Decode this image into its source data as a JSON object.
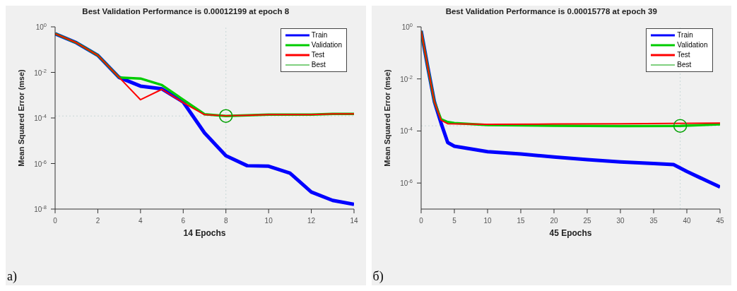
{
  "chart_data": [
    {
      "type": "line",
      "title": "Best Validation Performance is 0.00012199 at epoch 8",
      "xlabel": "14 Epochs",
      "ylabel": "Mean Squared Error  (mse)",
      "annotations": [
        "а)"
      ],
      "log": "y",
      "grid": false,
      "legend": "top right",
      "line_style": "solid",
      "xlim": [
        0,
        14
      ],
      "xticks": [
        0,
        2,
        4,
        6,
        8,
        10,
        12,
        14
      ],
      "ylim": [
        1e-08,
        1
      ],
      "yticks": [
        {
          "value": 1,
          "label": "10$^{0}$"
        },
        {
          "value": 0.01,
          "label": "10$^{-2}$"
        },
        {
          "value": 0.0001,
          "label": "10$^{-4}$"
        },
        {
          "value": 1e-06,
          "label": "10$^{-6}$"
        },
        {
          "value": 1e-08,
          "label": "10$^{-8}$"
        }
      ],
      "series": [
        {
          "name": "Train",
          "color": "#0000ff",
          "x": [
            0,
            1,
            2,
            3,
            4,
            5,
            6,
            7,
            8,
            9,
            10,
            11,
            12,
            13,
            14
          ],
          "values": [
            0.5,
            0.2,
            0.056,
            0.006,
            0.0025,
            0.0019,
            0.0005,
            2.2e-05,
            2.2e-06,
            8e-07,
            7.6e-07,
            3.8e-07,
            5.6e-08,
            2.4e-08,
            1.6e-08
          ]
        },
        {
          "name": "Validation",
          "color": "#00cc00",
          "x": [
            0,
            1,
            2,
            3,
            4,
            5,
            6,
            7,
            8,
            9,
            10,
            11,
            12,
            13,
            14
          ],
          "values": [
            0.5,
            0.2,
            0.056,
            0.006,
            0.0054,
            0.0028,
            0.00063,
            0.000145,
            0.00012199,
            0.00013,
            0.00014,
            0.00014,
            0.00014,
            0.00015,
            0.00015
          ]
        },
        {
          "name": "Test",
          "color": "#ff0000",
          "x": [
            0,
            1,
            2,
            3,
            4,
            5,
            6,
            7,
            8,
            9,
            10,
            11,
            12,
            13,
            14
          ],
          "values": [
            0.5,
            0.2,
            0.056,
            0.006,
            0.00063,
            0.0018,
            0.00047,
            0.00014,
            0.000125,
            0.00013,
            0.00014,
            0.00014,
            0.00014,
            0.00015,
            0.00015
          ]
        },
        {
          "name": "Best",
          "type": "scatter",
          "marker": "circle",
          "color": "#00a000",
          "x": [
            8
          ],
          "values": [
            0.00012199
          ]
        }
      ],
      "ref_lines": [
        {
          "axis": "x",
          "value": 8,
          "color": "#c8d8d8",
          "line_style": "dotted"
        },
        {
          "axis": "y",
          "value": 0.00012199,
          "color": "#c8d8d8",
          "line_style": "dotted"
        }
      ]
    },
    {
      "type": "line",
      "title": "Best Validation Performance is 0.00015778 at epoch 39",
      "xlabel": "45 Epochs",
      "ylabel": "Mean Squared Error  (mse)",
      "annotations": [
        "б)"
      ],
      "log": "y",
      "grid": false,
      "legend": "top right",
      "line_style": "solid",
      "xlim": [
        0,
        45
      ],
      "xticks": [
        0,
        5,
        10,
        15,
        20,
        25,
        30,
        35,
        40,
        45
      ],
      "ylim": [
        1e-07,
        1
      ],
      "yticks": [
        {
          "value": 1,
          "label": "10$^{0}$"
        },
        {
          "value": 0.01,
          "label": "10$^{-2}$"
        },
        {
          "value": 0.0001,
          "label": "10$^{-4}$"
        },
        {
          "value": 1e-06,
          "label": "10$^{-6}$"
        }
      ],
      "series": [
        {
          "name": "Train",
          "color": "#0000ff",
          "x": [
            0,
            1,
            2,
            3,
            4,
            5,
            10,
            15,
            20,
            25,
            30,
            35,
            38,
            40,
            42,
            45
          ],
          "values": [
            0.7,
            0.028,
            0.0013,
            0.0002,
            3.6e-05,
            2.6e-05,
            1.6e-05,
            1.3e-05,
            1e-05,
            7.9e-06,
            6.5e-06,
            5.6e-06,
            5.1e-06,
            2.8e-06,
            1.6e-06,
            7e-07
          ]
        },
        {
          "name": "Validation",
          "color": "#00cc00",
          "x": [
            0,
            1,
            2,
            3,
            4,
            5,
            10,
            20,
            30,
            39,
            45
          ],
          "values": [
            0.7,
            0.028,
            0.0013,
            0.00028,
            0.00022,
            0.0002,
            0.00017,
            0.00016,
            0.000155,
            0.00015778,
            0.00018
          ]
        },
        {
          "name": "Test",
          "color": "#ff0000",
          "x": [
            0,
            1,
            2,
            3,
            4,
            10,
            20,
            30,
            45
          ],
          "values": [
            0.7,
            0.028,
            0.0013,
            0.00026,
            0.00019,
            0.00018,
            0.000185,
            0.00019,
            0.0002
          ]
        },
        {
          "name": "Best",
          "type": "scatter",
          "marker": "circle",
          "color": "#00a000",
          "x": [
            39
          ],
          "values": [
            0.00015778
          ]
        }
      ],
      "ref_lines": [
        {
          "axis": "x",
          "value": 39,
          "color": "#c8d8d8",
          "line_style": "dotted"
        },
        {
          "axis": "y",
          "value": 0.00015778,
          "color": "#c8d8d8",
          "line_style": "dotted"
        }
      ]
    }
  ]
}
